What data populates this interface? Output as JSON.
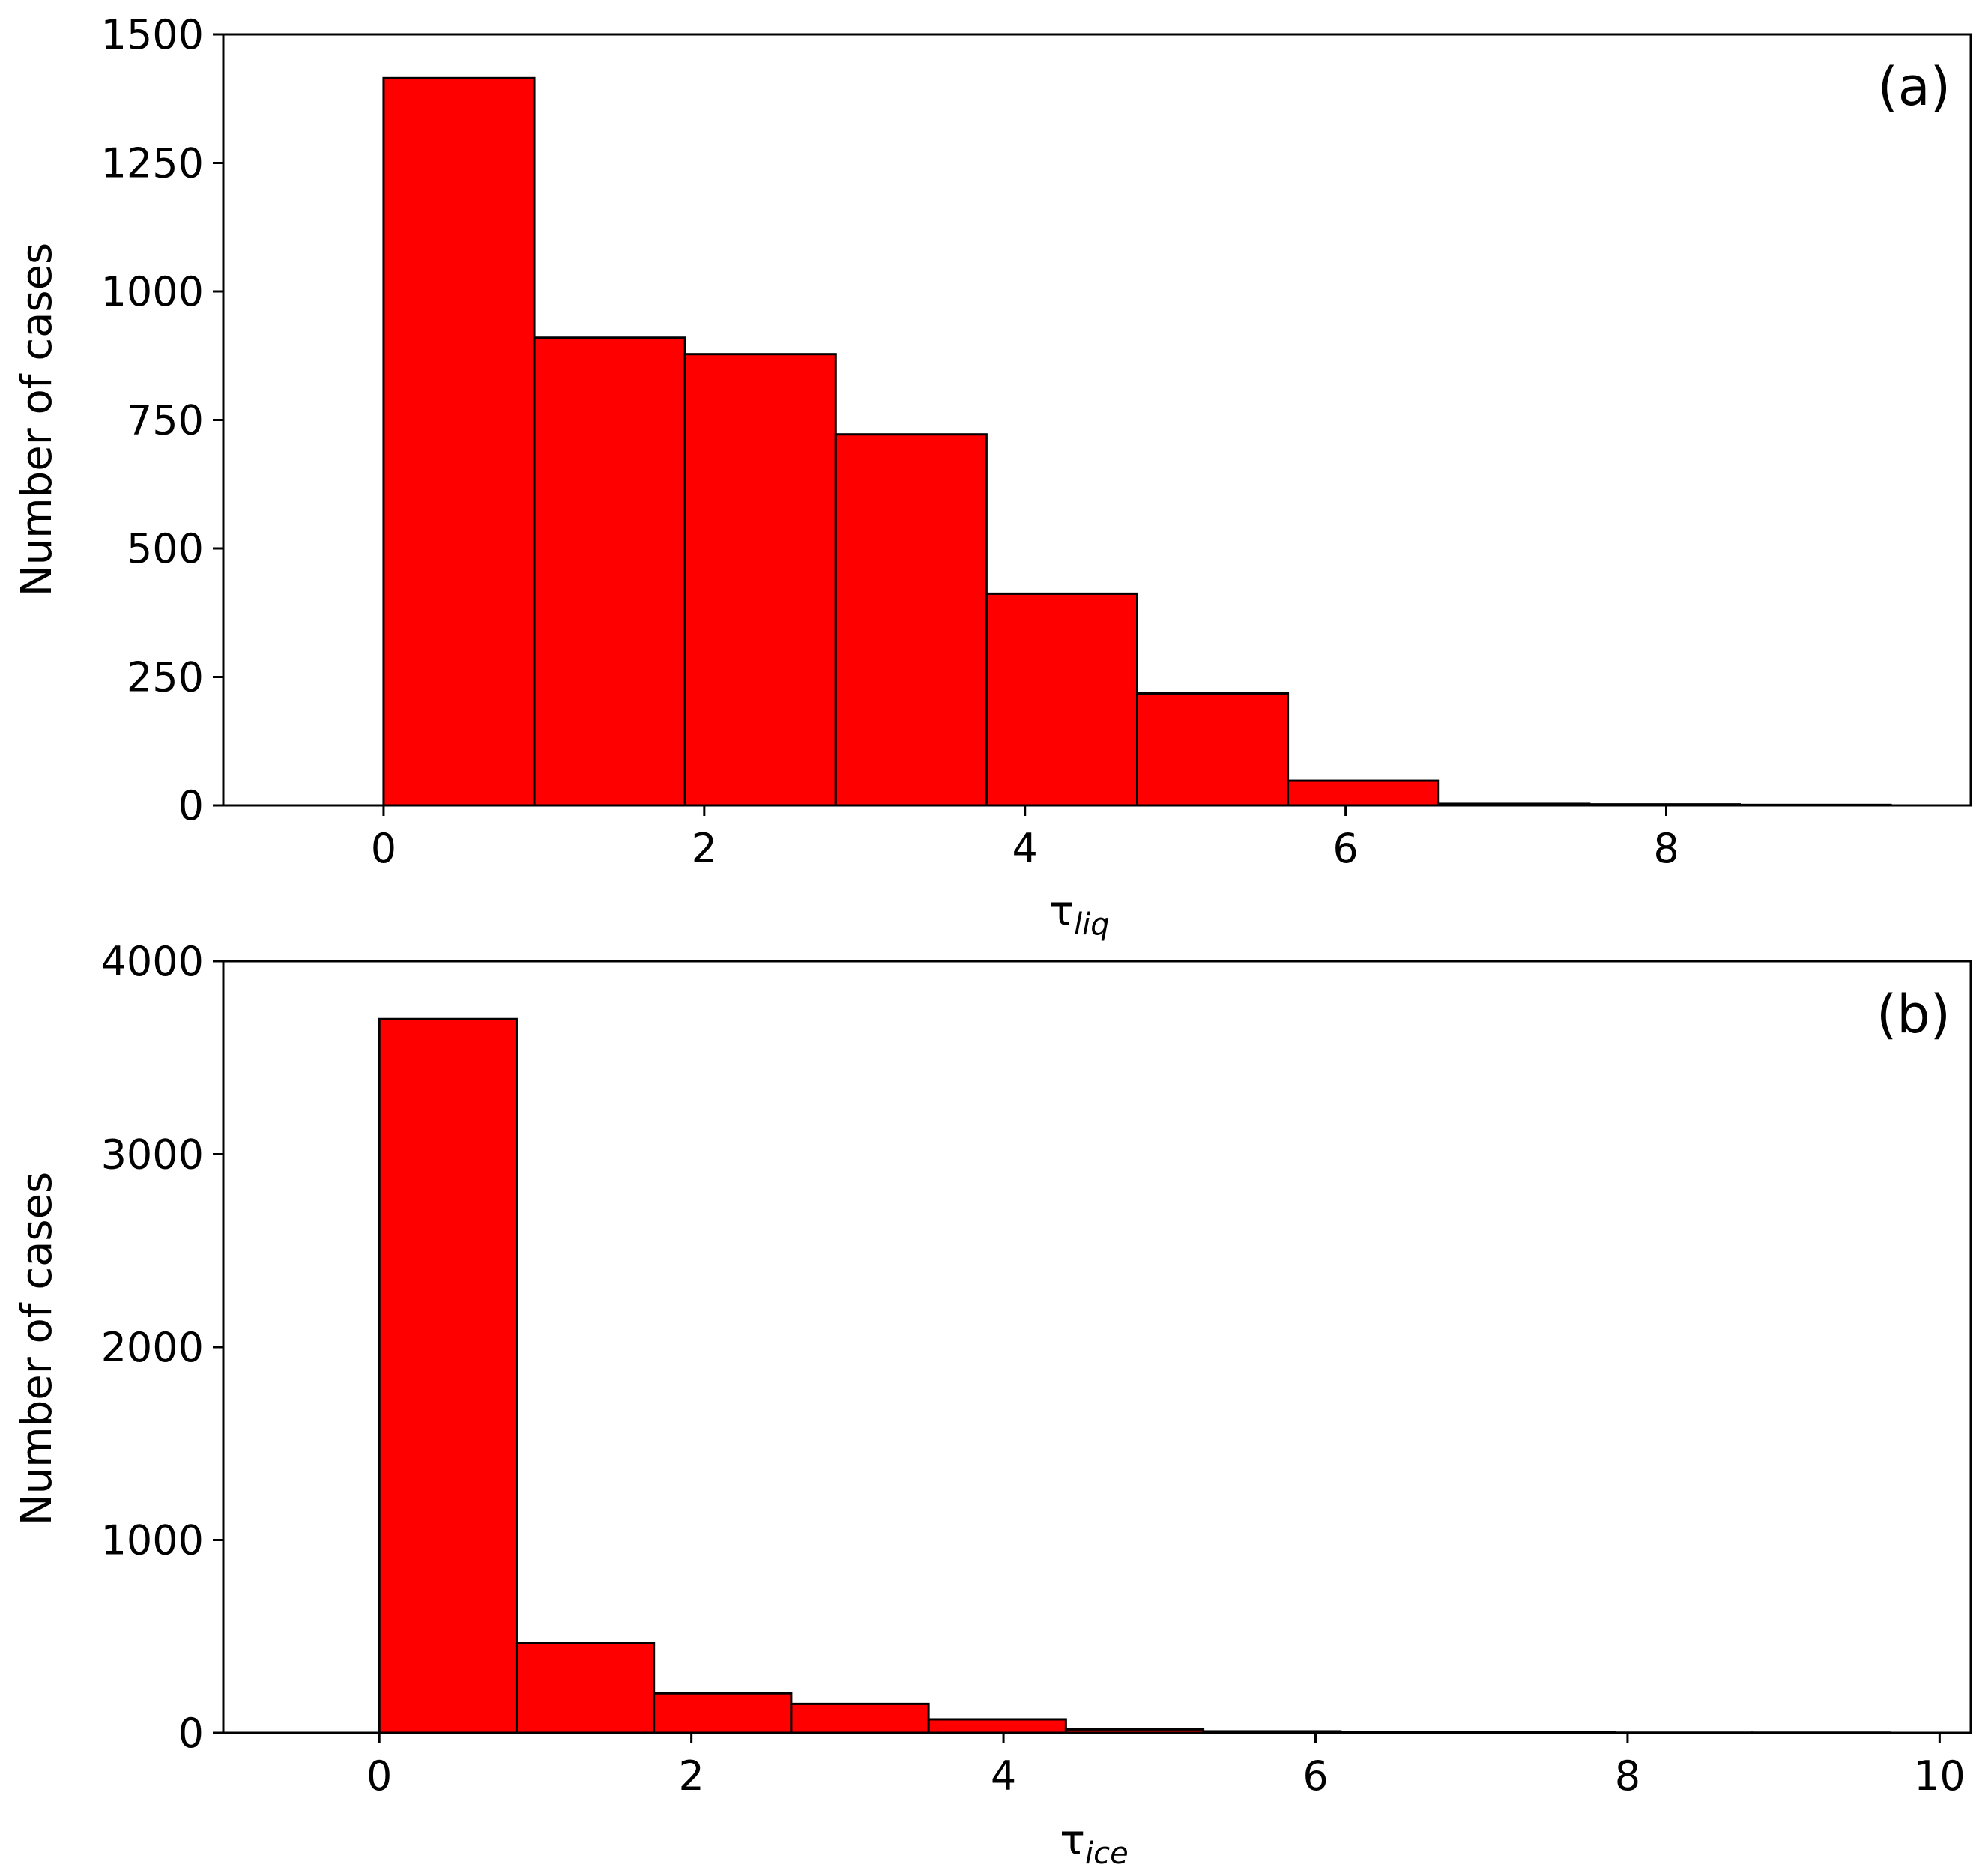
{
  "colors": {
    "bar_fill": "#ff0000",
    "bar_edge": "#000000",
    "axis": "#000000",
    "background": "#ffffff"
  },
  "chart_data": [
    {
      "type": "bar",
      "panel_label": "(a)",
      "ylabel": "Number of cases",
      "xlabel": {
        "symbol": "τ",
        "subscript": "liq"
      },
      "bin_edges": [
        0,
        0.94,
        1.88,
        2.82,
        3.76,
        4.7,
        5.64,
        6.58,
        7.52,
        8.46,
        9.4
      ],
      "values": [
        1415,
        910,
        878,
        722,
        412,
        218,
        48,
        3,
        2,
        1
      ],
      "xlim": [
        -1.0,
        9.9
      ],
      "ylim": [
        0,
        1500
      ],
      "xticks": [
        0,
        2,
        4,
        6,
        8
      ],
      "xtick_labels": [
        "0",
        "2",
        "4",
        "6",
        "8"
      ],
      "yticks": [
        0,
        250,
        500,
        750,
        1000,
        1250,
        1500
      ],
      "ytick_labels": [
        "0",
        "250",
        "500",
        "750",
        "1000",
        "1250",
        "1500"
      ],
      "grid": false,
      "legend": "none"
    },
    {
      "type": "bar",
      "panel_label": "(b)",
      "ylabel": "Number of cases",
      "xlabel": {
        "symbol": "τ",
        "subscript": "ice"
      },
      "bin_edges": [
        0,
        0.88,
        1.76,
        2.64,
        3.52,
        4.4,
        5.28,
        6.16,
        7.04,
        7.92,
        8.8,
        9.68
      ],
      "values": [
        3700,
        465,
        205,
        150,
        70,
        18,
        8,
        3,
        2,
        1,
        1
      ],
      "xlim": [
        -1.0,
        10.2
      ],
      "ylim": [
        0,
        4000
      ],
      "xticks": [
        0,
        2,
        4,
        6,
        8,
        10
      ],
      "xtick_labels": [
        "0",
        "2",
        "4",
        "6",
        "8",
        "10"
      ],
      "yticks": [
        0,
        1000,
        2000,
        3000,
        4000
      ],
      "ytick_labels": [
        "0",
        "1000",
        "2000",
        "3000",
        "4000"
      ],
      "grid": false,
      "legend": "none"
    }
  ]
}
